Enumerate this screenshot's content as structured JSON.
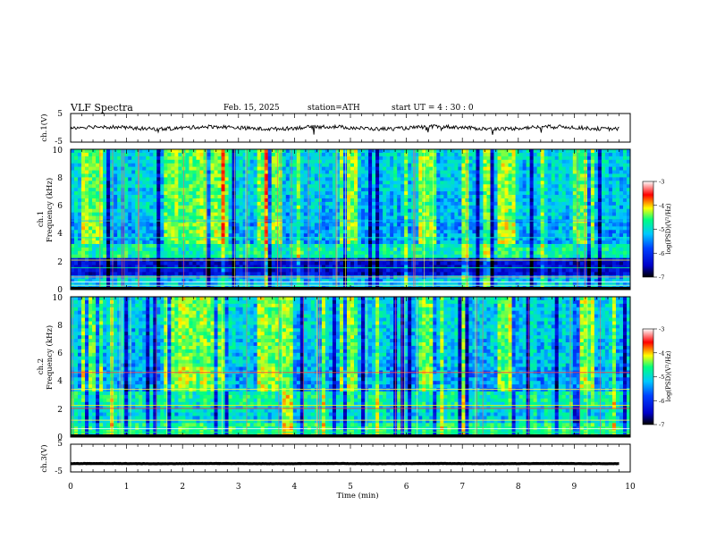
{
  "header": {
    "title": "VLF  Spectra",
    "date": "Feb. 15, 2025",
    "station": "station=ATH",
    "start_ut": "start  UT  =  4 : 30 : 0"
  },
  "chart_data": [
    {
      "id": "ch1-waveform",
      "type": "line",
      "ylabel": "ch.1(V)",
      "ylim": [
        -5,
        5
      ],
      "yticks": [
        "5",
        "-5"
      ],
      "xlim": [
        0,
        10
      ],
      "series": [
        {
          "mean": 0,
          "approx_range": [
            -2,
            1
          ]
        }
      ]
    },
    {
      "id": "ch1-spectrogram",
      "type": "heatmap",
      "ylabel": "ch.1\nFrequency  (kHz)",
      "ylim": [
        0,
        10
      ],
      "yticks": [
        "0",
        "2",
        "4",
        "6",
        "8",
        "10"
      ],
      "xlim": [
        0,
        10
      ],
      "burst_intervals_min": [
        [
          0.2,
          0.55
        ],
        [
          1.65,
          2.85
        ],
        [
          3.35,
          3.75
        ],
        [
          4.8,
          5.15
        ],
        [
          6.2,
          6.55
        ],
        [
          7.6,
          7.95
        ],
        [
          9.0,
          9.35
        ]
      ],
      "colorbar": {
        "label": "log(PSD)(V²/Hz)",
        "range": [
          -7,
          -3
        ],
        "ticks": [
          "-3",
          "-4",
          "-5",
          "-6",
          "-7"
        ]
      }
    },
    {
      "id": "ch2-spectrogram",
      "type": "heatmap",
      "ylabel": "ch.2\nFrequency  (kHz)",
      "ylim": [
        0,
        10
      ],
      "yticks": [
        "0",
        "2",
        "4",
        "6",
        "8",
        "10"
      ],
      "xlim": [
        0,
        10
      ],
      "burst_intervals_min": [
        [
          0.2,
          0.55
        ],
        [
          1.65,
          2.85
        ],
        [
          3.35,
          3.75
        ],
        [
          4.8,
          5.15
        ],
        [
          6.2,
          6.55
        ],
        [
          7.6,
          7.95
        ],
        [
          9.0,
          9.35
        ]
      ],
      "colorbar": {
        "label": "log(PSD)(V²/Hz)",
        "range": [
          -7,
          -3
        ],
        "ticks": [
          "-3",
          "-4",
          "-5",
          "-6",
          "-7"
        ]
      }
    },
    {
      "id": "ch3-waveform",
      "type": "line",
      "ylabel": "ch.3(V)",
      "ylim": [
        -5,
        5
      ],
      "yticks": [
        "5",
        "-5"
      ],
      "xlim": [
        0,
        10
      ],
      "series": [
        {
          "mean": -2,
          "approx_range": [
            -2.2,
            -1.8
          ]
        }
      ]
    }
  ],
  "x_axis": {
    "label": "Time  (min)",
    "ticks": [
      "0",
      "1",
      "2",
      "3",
      "4",
      "5",
      "6",
      "7",
      "8",
      "9",
      "10"
    ]
  },
  "colors": {
    "colormap": [
      "#000000",
      "#0000c8",
      "#0040ff",
      "#00c8ff",
      "#00ff80",
      "#ffff00",
      "#ff0000",
      "#ffffff"
    ]
  }
}
